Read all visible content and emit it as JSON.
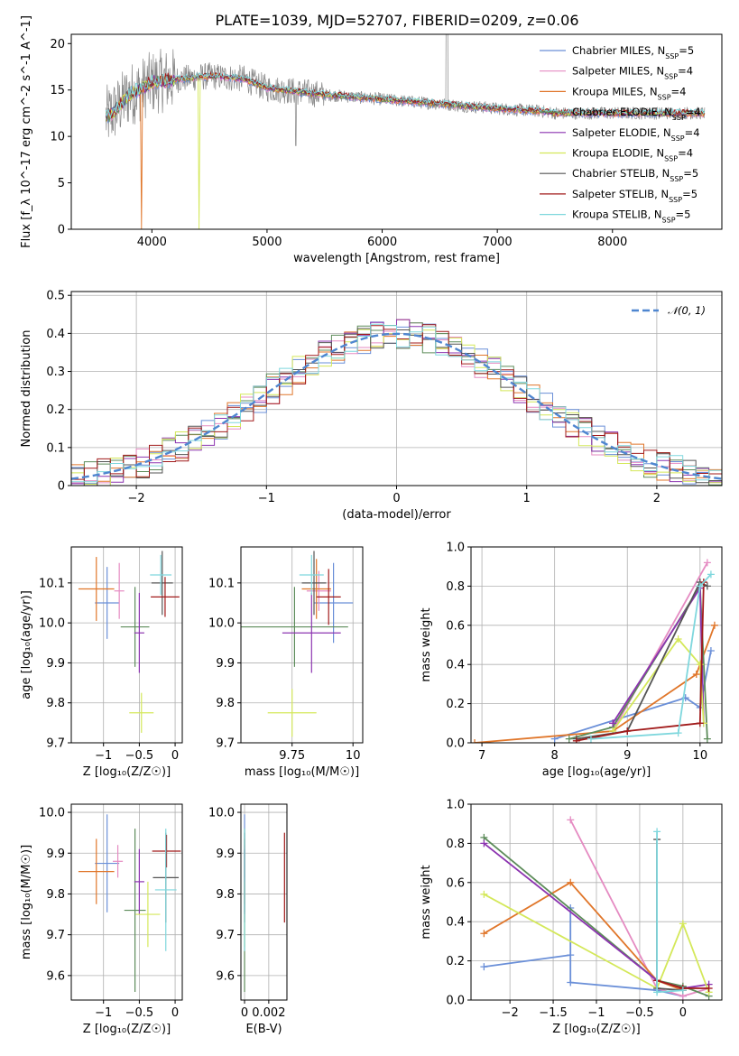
{
  "title": "PLATE=1039, MJD=52707, FIBERID=0209, z=0.06",
  "colors": {
    "chabrier_miles": "#6a8fd8",
    "salpeter_miles": "#e58bc2",
    "kroupa_miles": "#e0762a",
    "chabrier_elodie": "#5d8c5a",
    "salpeter_elodie": "#8c34b0",
    "kroupa_elodie": "#d4e85a",
    "chabrier_stelib": "#555555",
    "salpeter_stelib": "#a11a1a",
    "kroupa_stelib": "#7fd7dd",
    "data": "#888888",
    "gauss": "#4f86d0"
  },
  "legend_models": [
    {
      "name": "Chabrier MILES",
      "nssp": "5"
    },
    {
      "name": "Salpeter MILES",
      "nssp": "4"
    },
    {
      "name": "Kroupa MILES",
      "nssp": "4"
    },
    {
      "name": "Chabrier ELODIE",
      "nssp": "4"
    },
    {
      "name": "Salpeter ELODIE",
      "nssp": "4"
    },
    {
      "name": "Kroupa ELODIE",
      "nssp": "4"
    },
    {
      "name": "Chabrier STELIB",
      "nssp": "5"
    },
    {
      "name": "Salpeter STELIB",
      "nssp": "5"
    },
    {
      "name": "Kroupa STELIB",
      "nssp": "5"
    }
  ],
  "chart_data": [
    {
      "id": "spectrum",
      "type": "line",
      "xlabel": "wavelength [Angstrom, rest frame]",
      "ylabel": "Flux [f_λ 10^-17 erg cm^-2 s^-1 A^-1]",
      "xlim": [
        3300,
        8950
      ],
      "ylim": [
        0,
        21
      ],
      "xticks": [
        4000,
        5000,
        6000,
        7000,
        8000
      ],
      "yticks": [
        0,
        5,
        10,
        15,
        20
      ],
      "continuum_points": [
        [
          3600,
          12
        ],
        [
          3700,
          13
        ],
        [
          3800,
          14.5
        ],
        [
          3900,
          15
        ],
        [
          4000,
          15.8
        ],
        [
          4100,
          16
        ],
        [
          4500,
          16.5
        ],
        [
          4800,
          16.2
        ],
        [
          5000,
          15.2
        ],
        [
          5500,
          14.5
        ],
        [
          6000,
          14
        ],
        [
          6500,
          13.5
        ],
        [
          7000,
          13
        ],
        [
          7400,
          12.7
        ],
        [
          7500,
          12.5
        ]
      ]
    },
    {
      "id": "residual-histogram",
      "type": "line",
      "xlabel": "(data-model)/error",
      "ylabel": "Normed distribution",
      "xlim": [
        -2.5,
        2.5
      ],
      "ylim": [
        0,
        0.51
      ],
      "xticks": [
        -2,
        -1,
        0,
        1,
        2
      ],
      "yticks": [
        0.0,
        0.1,
        0.2,
        0.3,
        0.4,
        0.5
      ],
      "legend": "𝒩(0, 1)",
      "gauss": {
        "mean": 0,
        "sigma": 1
      }
    },
    {
      "id": "age-vs-Z",
      "type": "scatter",
      "xlabel": "Z [log₁₀(Z/Z☉)]",
      "ylabel": "age  [log₁₀(age/yr)]",
      "xlim": [
        -1.45,
        0.1
      ],
      "ylim": [
        9.7,
        10.19
      ],
      "xticks": [
        -1,
        -0.5,
        0
      ],
      "yticks": [
        9.7,
        9.8,
        9.9,
        10.0,
        10.1
      ],
      "points": [
        {
          "x": -0.95,
          "y": 10.05,
          "xerr": 0.17,
          "yerr": 0.09
        },
        {
          "x": -0.78,
          "y": 10.08,
          "xerr": 0.07,
          "yerr": 0.07
        },
        {
          "x": -1.1,
          "y": 10.085,
          "xerr": 0.25,
          "yerr": 0.08
        },
        {
          "x": -0.56,
          "y": 9.99,
          "xerr": 0.2,
          "yerr": 0.1
        },
        {
          "x": -0.5,
          "y": 9.975,
          "xerr": 0.07,
          "yerr": 0.1
        },
        {
          "x": -0.47,
          "y": 9.775,
          "xerr": 0.17,
          "yerr": 0.05
        },
        {
          "x": -0.18,
          "y": 10.1,
          "xerr": 0.15,
          "yerr": 0.08
        },
        {
          "x": -0.14,
          "y": 10.065,
          "xerr": 0.2,
          "yerr": 0.05
        },
        {
          "x": -0.2,
          "y": 10.12,
          "xerr": 0.15,
          "yerr": 0.05
        }
      ]
    },
    {
      "id": "age-vs-mass",
      "type": "scatter",
      "xlabel": "mass [log₁₀(M/M☉)]",
      "ylabel": "",
      "xlim": [
        9.54,
        10.04
      ],
      "ylim": [
        9.7,
        10.19
      ],
      "xticks": [
        9.75,
        10.0
      ],
      "yticks": [
        9.7,
        9.8,
        9.9,
        10.0,
        10.1
      ],
      "points": [
        {
          "x": 9.92,
          "y": 10.05,
          "xerr": 0.08,
          "yerr": 0.1
        },
        {
          "x": 9.86,
          "y": 10.08,
          "xerr": 0.05,
          "yerr": 0.05
        },
        {
          "x": 9.85,
          "y": 10.085,
          "xerr": 0.06,
          "yerr": 0.075
        },
        {
          "x": 9.76,
          "y": 9.99,
          "xerr": 0.22,
          "yerr": 0.1
        },
        {
          "x": 9.83,
          "y": 9.975,
          "xerr": 0.12,
          "yerr": 0.1
        },
        {
          "x": 9.75,
          "y": 9.775,
          "xerr": 0.1,
          "yerr": 0.06
        },
        {
          "x": 9.84,
          "y": 10.1,
          "xerr": 0.05,
          "yerr": 0.08
        },
        {
          "x": 9.9,
          "y": 10.065,
          "xerr": 0.05,
          "yerr": 0.07
        },
        {
          "x": 9.83,
          "y": 10.12,
          "xerr": 0.05,
          "yerr": 0.05
        }
      ]
    },
    {
      "id": "mass-weight-vs-age",
      "type": "line",
      "xlabel": "age  [log₁₀(age/yr)]",
      "ylabel": "mass weight",
      "xlim": [
        6.85,
        10.3
      ],
      "ylim": [
        0,
        1.0
      ],
      "xticks": [
        7,
        8,
        9,
        10
      ],
      "yticks": [
        0.0,
        0.2,
        0.4,
        0.6,
        0.8,
        1.0
      ],
      "series": [
        {
          "values": [
            [
              8.0,
              0.02
            ],
            [
              9.8,
              0.23
            ],
            [
              10.0,
              0.18
            ],
            [
              10.15,
              0.47
            ]
          ]
        },
        {
          "values": [
            [
              8.8,
              0.06
            ],
            [
              10.1,
              0.92
            ]
          ]
        },
        {
          "values": [
            [
              6.9,
              0.0
            ],
            [
              8.8,
              0.06
            ],
            [
              9.95,
              0.35
            ],
            [
              10.2,
              0.6
            ]
          ]
        },
        {
          "values": [
            [
              8.2,
              0.02
            ],
            [
              8.8,
              0.08
            ],
            [
              10.0,
              0.8
            ],
            [
              10.1,
              0.02
            ]
          ]
        },
        {
          "values": [
            [
              8.8,
              0.1
            ],
            [
              10.0,
              0.79
            ],
            [
              10.05,
              0.1
            ]
          ]
        },
        {
          "values": [
            [
              8.8,
              0.06
            ],
            [
              9.7,
              0.53
            ],
            [
              10.0,
              0.4
            ],
            [
              10.05,
              0.1
            ]
          ]
        },
        {
          "values": [
            [
              8.3,
              0.02
            ],
            [
              9.0,
              0.06
            ],
            [
              10.0,
              0.82
            ],
            [
              10.1,
              0.8
            ]
          ]
        },
        {
          "values": [
            [
              8.3,
              0.01
            ],
            [
              9.0,
              0.06
            ],
            [
              10.0,
              0.1
            ],
            [
              10.05,
              0.82
            ]
          ]
        },
        {
          "values": [
            [
              8.5,
              0.02
            ],
            [
              9.7,
              0.05
            ],
            [
              10.0,
              0.8
            ],
            [
              10.15,
              0.86
            ]
          ]
        }
      ]
    },
    {
      "id": "mass-vs-Z",
      "type": "scatter",
      "xlabel": "Z [log₁₀(Z/Z☉)]",
      "ylabel": "mass [log₁₀(M/M☉)]",
      "xlim": [
        -1.45,
        0.1
      ],
      "ylim": [
        9.54,
        10.02
      ],
      "xticks": [
        -1,
        -0.5,
        0
      ],
      "yticks": [
        9.6,
        9.7,
        9.8,
        9.9,
        10.0
      ],
      "points": [
        {
          "x": -0.95,
          "y": 9.875,
          "xerr": 0.17,
          "yerr": 0.12
        },
        {
          "x": -0.8,
          "y": 9.88,
          "xerr": 0.07,
          "yerr": 0.04
        },
        {
          "x": -1.1,
          "y": 9.855,
          "xerr": 0.25,
          "yerr": 0.08
        },
        {
          "x": -0.56,
          "y": 9.76,
          "xerr": 0.15,
          "yerr": 0.2
        },
        {
          "x": -0.5,
          "y": 9.83,
          "xerr": 0.07,
          "yerr": 0.08
        },
        {
          "x": -0.38,
          "y": 9.75,
          "xerr": 0.17,
          "yerr": 0.08
        },
        {
          "x": -0.13,
          "y": 9.84,
          "xerr": 0.18,
          "yerr": 0.11
        },
        {
          "x": -0.12,
          "y": 9.905,
          "xerr": 0.2,
          "yerr": 0.04
        },
        {
          "x": -0.13,
          "y": 9.81,
          "xerr": 0.15,
          "yerr": 0.15
        }
      ]
    },
    {
      "id": "mass-vs-ebv",
      "type": "scatter",
      "xlabel": "E(B-V)",
      "ylabel": "",
      "xlim": [
        -0.0003,
        0.0035
      ],
      "ylim": [
        9.54,
        10.02
      ],
      "xticks": [
        0.0,
        0.002
      ],
      "yticks": [
        9.6,
        9.7,
        9.8,
        9.9,
        10.0
      ],
      "points": [
        {
          "x": 0.0,
          "y": 9.875,
          "xerr": 0,
          "yerr": 0.12
        },
        {
          "x": 0.0,
          "y": 9.88,
          "xerr": 0,
          "yerr": 0.04
        },
        {
          "x": 0.0,
          "y": 9.855,
          "xerr": 0,
          "yerr": 0.08
        },
        {
          "x": 0.0,
          "y": 9.76,
          "xerr": 0,
          "yerr": 0.2
        },
        {
          "x": 0.0,
          "y": 9.83,
          "xerr": 0,
          "yerr": 0.08
        },
        {
          "x": 0.0,
          "y": 9.75,
          "xerr": 0,
          "yerr": 0.08
        },
        {
          "x": 0.0,
          "y": 9.84,
          "xerr": 0,
          "yerr": 0.11
        },
        {
          "x": 0.0033,
          "y": 9.84,
          "xerr": 0,
          "yerr": 0.11
        },
        {
          "x": 0.0,
          "y": 9.81,
          "xerr": 0,
          "yerr": 0.15
        }
      ]
    },
    {
      "id": "mass-weight-vs-Z",
      "type": "line",
      "xlabel": "Z [log₁₀(Z/Z☉)]",
      "ylabel": "mass weight",
      "xlim": [
        -2.45,
        0.45
      ],
      "ylim": [
        0,
        1.0
      ],
      "xticks": [
        -2.0,
        -1.5,
        -1.0,
        -0.5,
        0.0
      ],
      "yticks": [
        0.0,
        0.2,
        0.4,
        0.6,
        0.8,
        1.0
      ],
      "series": [
        {
          "values": [
            [
              -2.3,
              0.17
            ],
            [
              -1.3,
              0.23
            ],
            [
              -1.3,
              0.47
            ],
            [
              -1.3,
              0.09
            ],
            [
              -0.3,
              0.05
            ],
            [
              0.0,
              0.02
            ]
          ]
        },
        {
          "values": [
            [
              -1.3,
              0.92
            ],
            [
              -0.3,
              0.06
            ],
            [
              0.0,
              0.02
            ],
            [
              0.3,
              0.06
            ]
          ]
        },
        {
          "values": [
            [
              -2.3,
              0.34
            ],
            [
              -1.3,
              0.6
            ],
            [
              -0.3,
              0.1
            ],
            [
              0.0,
              0.05
            ]
          ]
        },
        {
          "values": [
            [
              -2.3,
              0.83
            ],
            [
              -0.3,
              0.1
            ],
            [
              0.0,
              0.07
            ],
            [
              0.3,
              0.02
            ]
          ]
        },
        {
          "values": [
            [
              -2.3,
              0.8
            ],
            [
              -0.3,
              0.1
            ],
            [
              0.0,
              0.06
            ],
            [
              0.3,
              0.08
            ]
          ]
        },
        {
          "values": [
            [
              -2.3,
              0.54
            ],
            [
              -0.3,
              0.06
            ],
            [
              0.0,
              0.39
            ],
            [
              0.3,
              0.04
            ]
          ]
        },
        {
          "values": [
            [
              -0.3,
              0.82
            ],
            [
              -0.3,
              0.06
            ],
            [
              0.0,
              0.05
            ]
          ]
        },
        {
          "values": [
            [
              -0.3,
              0.1
            ],
            [
              0.0,
              0.06
            ],
            [
              0.3,
              0.06
            ]
          ]
        },
        {
          "values": [
            [
              -0.3,
              0.86
            ],
            [
              -0.3,
              0.04
            ],
            [
              0.0,
              0.05
            ]
          ]
        }
      ]
    }
  ]
}
